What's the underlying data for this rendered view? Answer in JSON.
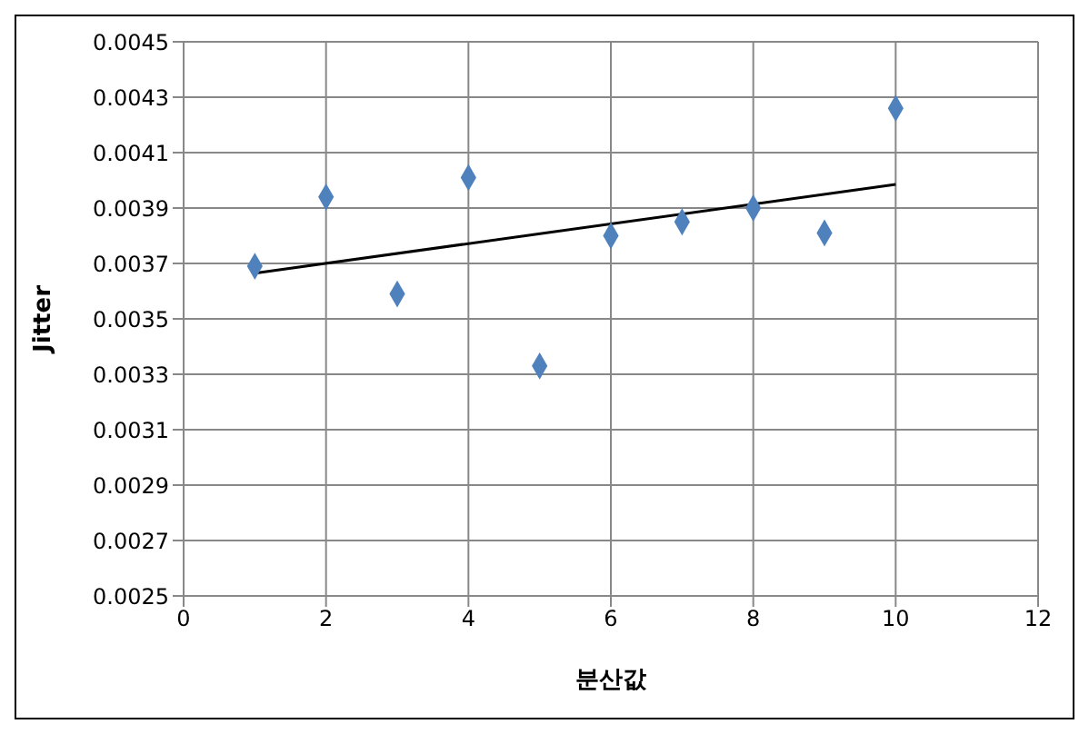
{
  "chart_data": {
    "type": "scatter",
    "xlabel": "분산값",
    "ylabel": "Jitter",
    "xlim": [
      0,
      12
    ],
    "xticks": [
      0,
      2,
      4,
      6,
      8,
      10,
      12
    ],
    "ylim": [
      0.0025,
      0.0045
    ],
    "yticks": [
      0.0025,
      0.0027,
      0.0029,
      0.0031,
      0.0033,
      0.0035,
      0.0037,
      0.0039,
      0.0041,
      0.0043,
      0.0045
    ],
    "grid": true,
    "legend": false,
    "series": [
      {
        "marker": "diamond",
        "color": "#4f81bd",
        "x": [
          1,
          2,
          3,
          4,
          5,
          6,
          7,
          8,
          9,
          10
        ],
        "values": [
          0.00369,
          0.00394,
          0.00359,
          0.00401,
          0.00333,
          0.0038,
          0.00385,
          0.0039,
          0.00381,
          0.00426
        ]
      },
      {
        "type": "line",
        "marker": "none",
        "color": "#000000",
        "x": [
          1,
          10
        ],
        "values": [
          0.003665,
          0.003985
        ]
      }
    ]
  }
}
